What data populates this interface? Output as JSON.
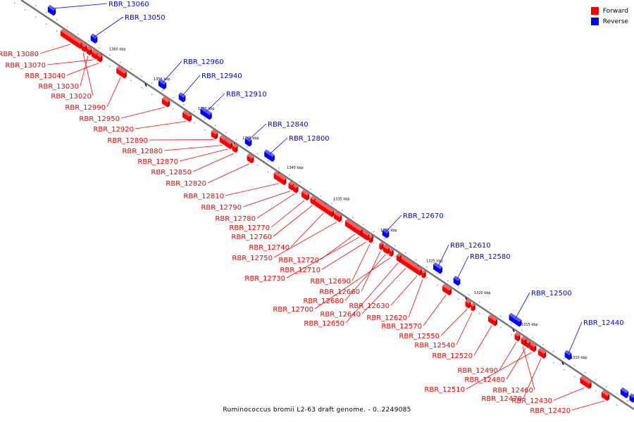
{
  "colors": {
    "forward": "#ff0000",
    "reverse": "#0000ff",
    "backbone": "#777777"
  },
  "legend": [
    {
      "key": "forward",
      "label": "Forward"
    },
    {
      "key": "reverse",
      "label": "Reverse"
    }
  ],
  "caption": "Ruminococcus bromii L2-63 draft genome. - 0..2249085",
  "ticks": [
    "1360 kbp",
    "1355 kbp",
    "1350 kbp",
    "1345 kbp",
    "1340 kbp",
    "1335 kbp",
    "1330 kbp",
    "1325 kbp",
    "1320 kbp",
    "1315 kbp",
    "1310 kbp"
  ],
  "reverse_genes": [
    "RBR_13060",
    "RBR_13050",
    "RBR_12960",
    "RBR_12940",
    "RBR_12910",
    "RBR_12840",
    "RBR_12800",
    "RBR_12670",
    "RBR_12610",
    "RBR_12580",
    "RBR_12500",
    "RBR_12440"
  ],
  "forward_genes": [
    "RBR_13080",
    "RBR_13070",
    "RBR_13040",
    "RBR_13030",
    "RBR_13020",
    "RBR_12990",
    "RBR_12950",
    "RBR_12920",
    "RBR_12890",
    "RBR_12880",
    "RBR_12870",
    "RBR_12850",
    "RBR_12820",
    "RBR_12810",
    "RBR_12790",
    "RBR_12780",
    "RBR_12770",
    "RBR_12760",
    "RBR_12740",
    "RBR_12750",
    "RBR_12720",
    "RBR_12710",
    "RBR_12730",
    "RBR_12690",
    "RBR_12660",
    "RBR_12680",
    "RBR_12700",
    "RBR_12640",
    "RBR_12650",
    "RBR_12630",
    "RBR_12620",
    "RBR_12570",
    "RBR_12550",
    "RBR_12540",
    "RBR_12520",
    "RBR_12490",
    "RBR_12480",
    "RBR_12510",
    "RBR_12470",
    "RBR_12460",
    "RBR_12430",
    "RBR_12420"
  ]
}
